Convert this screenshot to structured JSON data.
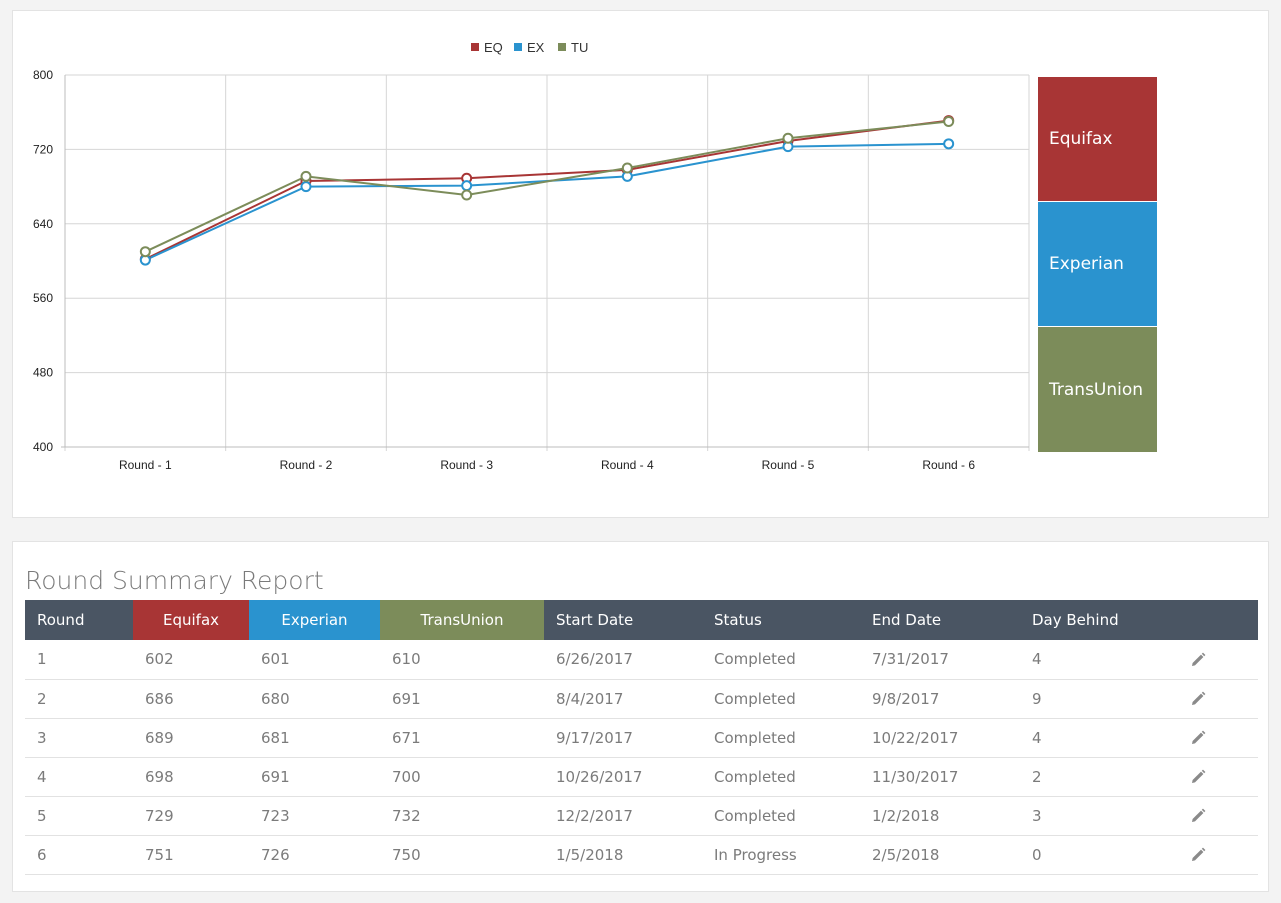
{
  "colors": {
    "equifax": "#a83535",
    "experian": "#2a93cf",
    "transunion": "#7c8c5a",
    "header_bg": "#4a5563"
  },
  "chart_data": {
    "type": "line",
    "categories": [
      "Round - 1",
      "Round - 2",
      "Round - 3",
      "Round - 4",
      "Round - 5",
      "Round - 6"
    ],
    "series": [
      {
        "name": "EQ",
        "values": [
          602,
          686,
          689,
          698,
          729,
          751
        ]
      },
      {
        "name": "EX",
        "values": [
          601,
          680,
          681,
          691,
          723,
          726
        ]
      },
      {
        "name": "TU",
        "values": [
          610,
          691,
          671,
          700,
          732,
          750
        ]
      }
    ],
    "ylim": [
      400,
      800
    ],
    "yticks": [
      400,
      480,
      560,
      640,
      720,
      800
    ],
    "grid": true,
    "legend": "top-center",
    "markers": "hollow-circle"
  },
  "side_legend": [
    {
      "label": "Equifax"
    },
    {
      "label": "Experian"
    },
    {
      "label": "TransUnion"
    }
  ],
  "report": {
    "title": "Round Summary Report",
    "columns": [
      "Round",
      "Equifax",
      "Experian",
      "TransUnion",
      "Start Date",
      "Status",
      "End Date",
      "Day Behind",
      ""
    ],
    "rows": [
      [
        "1",
        "602",
        "601",
        "610",
        "6/26/2017",
        "Completed",
        "7/31/2017",
        "4"
      ],
      [
        "2",
        "686",
        "680",
        "691",
        "8/4/2017",
        "Completed",
        "9/8/2017",
        "9"
      ],
      [
        "3",
        "689",
        "681",
        "671",
        "9/17/2017",
        "Completed",
        "10/22/2017",
        "4"
      ],
      [
        "4",
        "698",
        "691",
        "700",
        "10/26/2017",
        "Completed",
        "11/30/2017",
        "2"
      ],
      [
        "5",
        "729",
        "723",
        "732",
        "12/2/2017",
        "Completed",
        "1/2/2018",
        "3"
      ],
      [
        "6",
        "751",
        "726",
        "750",
        "1/5/2018",
        "In Progress",
        "2/5/2018",
        "0"
      ]
    ],
    "row_icon": "pencil-icon"
  }
}
